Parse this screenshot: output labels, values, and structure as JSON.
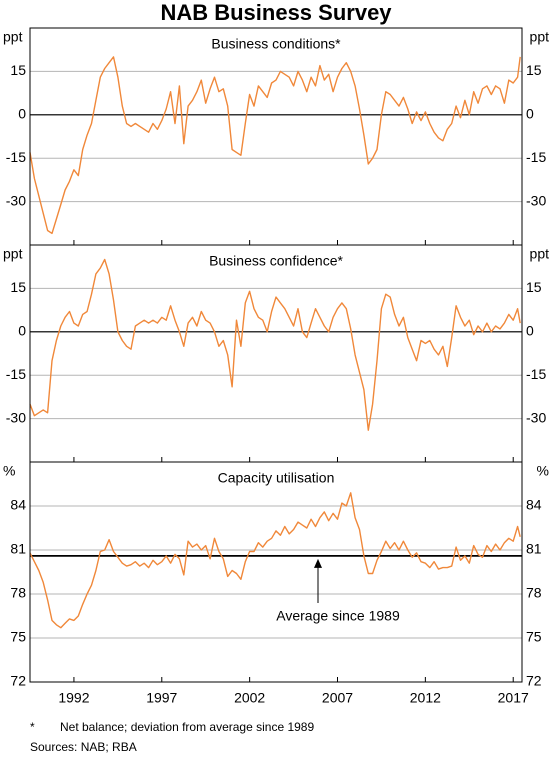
{
  "title": "NAB Business Survey",
  "footnotes": {
    "marker": "*",
    "note": "Net balance; deviation from average since 1989",
    "sources": "Sources: NAB; RBA"
  },
  "chart_data": [
    {
      "type": "line",
      "title": "Business conditions*",
      "y_label": "ppt",
      "color": "#f0883a",
      "ylim": [
        -45,
        30
      ],
      "yticks": [
        -30,
        -15,
        0,
        15
      ],
      "xlim": [
        1989.5,
        2017.5
      ],
      "baseline": 0,
      "grid": true,
      "x": [
        1989.5,
        1989.75,
        1990,
        1990.25,
        1990.5,
        1990.75,
        1991,
        1991.25,
        1991.5,
        1991.75,
        1992,
        1992.25,
        1992.5,
        1992.75,
        1993,
        1993.25,
        1993.5,
        1993.75,
        1994,
        1994.25,
        1994.5,
        1994.75,
        1995,
        1995.25,
        1995.5,
        1995.75,
        1996,
        1996.25,
        1996.5,
        1996.75,
        1997,
        1997.25,
        1997.5,
        1997.75,
        1998,
        1998.25,
        1998.5,
        1998.75,
        1999,
        1999.25,
        1999.5,
        1999.75,
        2000,
        2000.25,
        2000.5,
        2000.75,
        2001,
        2001.25,
        2001.5,
        2001.75,
        2002,
        2002.25,
        2002.5,
        2002.75,
        2003,
        2003.25,
        2003.5,
        2003.75,
        2004,
        2004.25,
        2004.5,
        2004.75,
        2005,
        2005.25,
        2005.5,
        2005.75,
        2006,
        2006.25,
        2006.5,
        2006.75,
        2007,
        2007.25,
        2007.5,
        2007.75,
        2008,
        2008.25,
        2008.5,
        2008.75,
        2009,
        2009.25,
        2009.5,
        2009.75,
        2010,
        2010.25,
        2010.5,
        2010.75,
        2011,
        2011.25,
        2011.5,
        2011.75,
        2012,
        2012.25,
        2012.5,
        2012.75,
        2013,
        2013.25,
        2013.5,
        2013.75,
        2014,
        2014.25,
        2014.5,
        2014.75,
        2015,
        2015.25,
        2015.5,
        2015.75,
        2016,
        2016.25,
        2016.5,
        2016.75,
        2017,
        2017.25,
        2017.4
      ],
      "values": [
        -13,
        -22,
        -28,
        -34,
        -40,
        -41,
        -36,
        -31,
        -26,
        -23,
        -19,
        -21,
        -12,
        -7,
        -3,
        5,
        13,
        16,
        18,
        20,
        13,
        3,
        -3,
        -4,
        -3,
        -4,
        -5,
        -6,
        -3,
        -5,
        -2,
        2,
        8,
        -3,
        10,
        -10,
        3,
        5,
        8,
        12,
        4,
        9,
        13,
        8,
        9,
        3,
        -12,
        -13,
        -14,
        -3,
        7,
        3,
        10,
        8,
        6,
        11,
        12,
        15,
        14,
        13,
        10,
        15,
        12,
        8,
        13,
        10,
        17,
        12,
        14,
        8,
        13,
        16,
        18,
        15,
        10,
        2,
        -7,
        -17,
        -15,
        -12,
        0,
        8,
        7,
        5,
        3,
        6,
        2,
        -3,
        1,
        -2,
        1,
        -3,
        -6,
        -8,
        -9,
        -5,
        -3,
        3,
        -1,
        5,
        0,
        8,
        4,
        9,
        10,
        7,
        10,
        9,
        4,
        12,
        11,
        13,
        20
      ]
    },
    {
      "type": "line",
      "title": "Business confidence*",
      "y_label": "ppt",
      "color": "#f0883a",
      "ylim": [
        -45,
        30
      ],
      "yticks": [
        -30,
        -15,
        0,
        15
      ],
      "xlim": [
        1989.5,
        2017.5
      ],
      "baseline": 0,
      "grid": true,
      "x": [
        1989.5,
        1989.75,
        1990,
        1990.25,
        1990.5,
        1990.75,
        1991,
        1991.25,
        1991.5,
        1991.75,
        1992,
        1992.25,
        1992.5,
        1992.75,
        1993,
        1993.25,
        1993.5,
        1993.75,
        1994,
        1994.25,
        1994.5,
        1994.75,
        1995,
        1995.25,
        1995.5,
        1995.75,
        1996,
        1996.25,
        1996.5,
        1996.75,
        1997,
        1997.25,
        1997.5,
        1997.75,
        1998,
        1998.25,
        1998.5,
        1998.75,
        1999,
        1999.25,
        1999.5,
        1999.75,
        2000,
        2000.25,
        2000.5,
        2000.75,
        2001,
        2001.25,
        2001.5,
        2001.75,
        2002,
        2002.25,
        2002.5,
        2002.75,
        2003,
        2003.25,
        2003.5,
        2003.75,
        2004,
        2004.25,
        2004.5,
        2004.75,
        2005,
        2005.25,
        2005.5,
        2005.75,
        2006,
        2006.25,
        2006.5,
        2006.75,
        2007,
        2007.25,
        2007.5,
        2007.75,
        2008,
        2008.25,
        2008.5,
        2008.75,
        2009,
        2009.25,
        2009.5,
        2009.75,
        2010,
        2010.25,
        2010.5,
        2010.75,
        2011,
        2011.25,
        2011.5,
        2011.75,
        2012,
        2012.25,
        2012.5,
        2012.75,
        2013,
        2013.25,
        2013.5,
        2013.75,
        2014,
        2014.25,
        2014.5,
        2014.75,
        2015,
        2015.25,
        2015.5,
        2015.75,
        2016,
        2016.25,
        2016.5,
        2016.75,
        2017,
        2017.25,
        2017.4
      ],
      "values": [
        -25,
        -29,
        -28,
        -27,
        -28,
        -10,
        -3,
        2,
        5,
        7,
        3,
        2,
        6,
        7,
        13,
        20,
        22,
        25,
        20,
        11,
        0,
        -3,
        -5,
        -6,
        2,
        3,
        4,
        3,
        4,
        3,
        5,
        4,
        9,
        4,
        0,
        -5,
        3,
        5,
        2,
        7,
        4,
        3,
        0,
        -5,
        -3,
        -8,
        -19,
        4,
        -5,
        10,
        14,
        8,
        5,
        4,
        0,
        7,
        12,
        10,
        8,
        5,
        2,
        8,
        0,
        -2,
        3,
        8,
        5,
        2,
        0,
        5,
        8,
        10,
        8,
        1,
        -8,
        -14,
        -20,
        -34,
        -25,
        -10,
        8,
        13,
        12,
        6,
        2,
        5,
        -2,
        -6,
        -10,
        -3,
        -4,
        -3,
        -6,
        -8,
        -5,
        -12,
        -2,
        9,
        5,
        2,
        4,
        -1,
        2,
        0,
        3,
        0,
        2,
        1,
        3,
        6,
        4,
        8,
        3
      ]
    },
    {
      "type": "line",
      "title": "Capacity utilisation",
      "y_label": "%",
      "color": "#f0883a",
      "ylim": [
        72,
        87
      ],
      "yticks": [
        72,
        75,
        78,
        81,
        84
      ],
      "xlim": [
        1989.5,
        2017.5
      ],
      "xticks": [
        1992,
        1997,
        2002,
        2007,
        2012,
        2017
      ],
      "grid": true,
      "reference_line": {
        "value": 80.6,
        "label": "Average since 1989"
      },
      "x": [
        1989.5,
        1989.75,
        1990,
        1990.25,
        1990.5,
        1990.75,
        1991,
        1991.25,
        1991.5,
        1991.75,
        1992,
        1992.25,
        1992.5,
        1992.75,
        1993,
        1993.25,
        1993.5,
        1993.75,
        1994,
        1994.25,
        1994.5,
        1994.75,
        1995,
        1995.25,
        1995.5,
        1995.75,
        1996,
        1996.25,
        1996.5,
        1996.75,
        1997,
        1997.25,
        1997.5,
        1997.75,
        1998,
        1998.25,
        1998.5,
        1998.75,
        1999,
        1999.25,
        1999.5,
        1999.75,
        2000,
        2000.25,
        2000.5,
        2000.75,
        2001,
        2001.25,
        2001.5,
        2001.75,
        2002,
        2002.25,
        2002.5,
        2002.75,
        2003,
        2003.25,
        2003.5,
        2003.75,
        2004,
        2004.25,
        2004.5,
        2004.75,
        2005,
        2005.25,
        2005.5,
        2005.75,
        2006,
        2006.25,
        2006.5,
        2006.75,
        2007,
        2007.25,
        2007.5,
        2007.75,
        2008,
        2008.25,
        2008.5,
        2008.75,
        2009,
        2009.25,
        2009.5,
        2009.75,
        2010,
        2010.25,
        2010.5,
        2010.75,
        2011,
        2011.25,
        2011.5,
        2011.75,
        2012,
        2012.25,
        2012.5,
        2012.75,
        2013,
        2013.25,
        2013.5,
        2013.75,
        2014,
        2014.25,
        2014.5,
        2014.75,
        2015,
        2015.25,
        2015.5,
        2015.75,
        2016,
        2016.25,
        2016.5,
        2016.75,
        2017,
        2017.25,
        2017.4
      ],
      "values": [
        80.8,
        80.2,
        79.6,
        78.8,
        77.6,
        76.2,
        75.9,
        75.7,
        76.0,
        76.3,
        76.2,
        76.5,
        77.3,
        78.0,
        78.6,
        79.6,
        80.9,
        81.0,
        81.7,
        80.9,
        80.5,
        80.1,
        79.9,
        80.0,
        80.2,
        79.9,
        80.1,
        79.8,
        80.3,
        80.0,
        80.2,
        80.6,
        80.1,
        80.7,
        80.4,
        79.3,
        81.6,
        81.2,
        81.4,
        81.0,
        81.3,
        80.4,
        81.8,
        80.9,
        80.4,
        79.2,
        79.6,
        79.4,
        79.0,
        80.2,
        80.9,
        80.9,
        81.5,
        81.2,
        81.6,
        81.8,
        82.3,
        82.0,
        82.6,
        82.1,
        82.4,
        82.9,
        82.7,
        82.5,
        83.1,
        82.6,
        83.2,
        83.6,
        83.0,
        83.5,
        83.1,
        84.2,
        84.0,
        84.9,
        83.2,
        82.4,
        80.6,
        79.4,
        79.4,
        80.3,
        80.9,
        81.6,
        81.1,
        81.5,
        81.0,
        81.6,
        81.0,
        80.5,
        80.8,
        80.2,
        80.1,
        79.8,
        80.2,
        79.7,
        79.8,
        79.8,
        79.9,
        81.2,
        80.3,
        80.6,
        80.1,
        81.3,
        80.7,
        80.5,
        81.3,
        80.9,
        81.4,
        81.0,
        81.5,
        81.8,
        81.6,
        82.6,
        81.9
      ]
    }
  ]
}
